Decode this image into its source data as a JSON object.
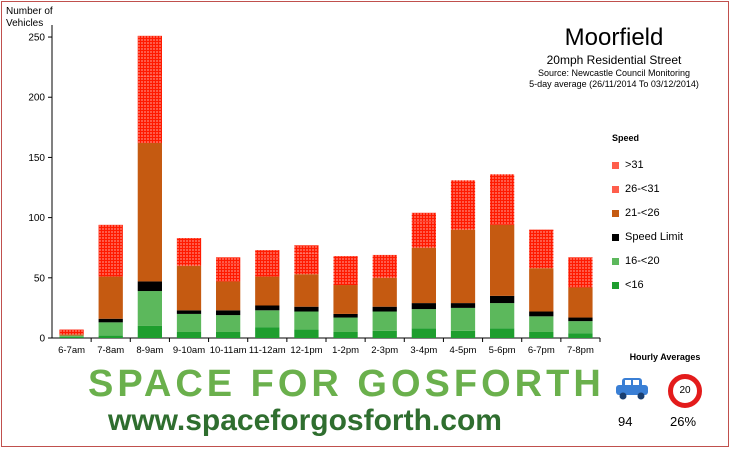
{
  "header": {
    "y_axis_title": "Number of Vehicles",
    "title": "Moorfield",
    "subtitle": "20mph Residential Street",
    "source": "Source: Newcastle Council Monitoring",
    "period": "5-day average (26/11/2014 To 03/12/2014)"
  },
  "legend": {
    "title": "Speed",
    "items": [
      {
        "label": ">31",
        "color": "#ff1a00",
        "hatched": true
      },
      {
        "label": "26-<31",
        "color": "#ff1a00",
        "hatched": true
      },
      {
        "label": "21-<26",
        "color": "#c55a11",
        "hatched": false
      },
      {
        "label": "Speed Limit",
        "color": "#000000",
        "hatched": false
      },
      {
        "label": "16-<20",
        "color": "#5cb85c",
        "hatched": false
      },
      {
        "label": "<16",
        "color": "#1e9e2e",
        "hatched": false
      }
    ]
  },
  "hourly": {
    "title": "Hourly Averages",
    "sign_text": "20",
    "vehicles": "94",
    "percent": "26%",
    "car_icon": "car-icon",
    "sign_icon": "speed-limit-sign-icon"
  },
  "branding": {
    "line1": "SPACE FOR GOSFORTH",
    "line2": "www.spaceforgosforth.com"
  },
  "colors": {
    "lt16": "#1e9e2e",
    "s16_20": "#5cb85c",
    "speed_limit": "#000000",
    "s21_26": "#c55a11",
    "s26_31": "#ff1a00",
    "gt31": "#ff1a00",
    "frame": "#c0504d"
  },
  "chart_data": {
    "type": "bar",
    "stacked": true,
    "categories": [
      "6-7am",
      "7-8am",
      "8-9am",
      "9-10am",
      "10-11am",
      "11-12am",
      "12-1pm",
      "1-2pm",
      "2-3pm",
      "3-4pm",
      "4-5pm",
      "5-6pm",
      "6-7pm",
      "7-8pm"
    ],
    "series": [
      {
        "name": "<16",
        "values": [
          1,
          2,
          10,
          5,
          5,
          9,
          7,
          5,
          6,
          8,
          6,
          8,
          5,
          4
        ]
      },
      {
        "name": "16-<20",
        "values": [
          1,
          11,
          29,
          15,
          14,
          14,
          15,
          12,
          16,
          16,
          19,
          21,
          13,
          10
        ]
      },
      {
        "name": "Speed Limit",
        "values": [
          0,
          3,
          8,
          3,
          4,
          4,
          4,
          3,
          4,
          5,
          4,
          6,
          4,
          3
        ]
      },
      {
        "name": "21-<26",
        "values": [
          1,
          35,
          115,
          37,
          24,
          24,
          27,
          24,
          24,
          46,
          61,
          59,
          36,
          25
        ]
      },
      {
        "name": "26-<31",
        "values": [
          2,
          30,
          55,
          16,
          15,
          16,
          17,
          17,
          14,
          22,
          30,
          30,
          25,
          17
        ]
      },
      {
        "name": ">31",
        "values": [
          2,
          13,
          34,
          7,
          5,
          6,
          7,
          7,
          5,
          7,
          11,
          12,
          7,
          8
        ]
      }
    ],
    "ylim": [
      0,
      260
    ],
    "yticks": [
      0,
      50,
      100,
      150,
      200,
      250
    ],
    "ylabel": "Number of Vehicles",
    "title": "Moorfield",
    "legend_position": "right",
    "grid": false
  }
}
